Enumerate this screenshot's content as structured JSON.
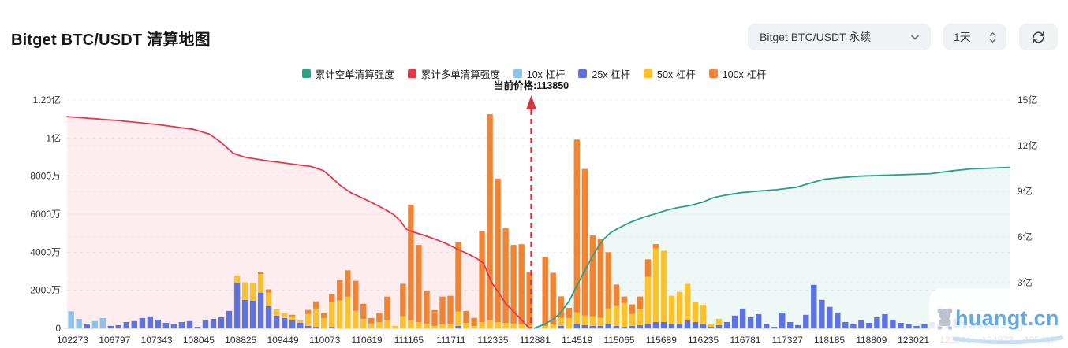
{
  "header": {
    "title": "Bitget BTC/USDT 清算地图"
  },
  "controls": {
    "symbol_select": {
      "value": "Bitget BTC/USDT 永续"
    },
    "period_select": {
      "value": "1天"
    }
  },
  "legend": {
    "items": [
      {
        "label": "累计空单清算强度",
        "color": "#2aa188"
      },
      {
        "label": "累计多单清算强度",
        "color": "#e5394a"
      },
      {
        "label": "10x 杠杆",
        "color": "#8ac4ea"
      },
      {
        "label": "25x 杠杆",
        "color": "#5e72e0"
      },
      {
        "label": "50x 杠杆",
        "color": "#fbc22d"
      },
      {
        "label": "100x 杠杆",
        "color": "#ee8434"
      }
    ]
  },
  "watermark": {
    "text": "huangt.cn"
  },
  "chart_data": {
    "type": "combo_bar_line",
    "title": "Bitget BTC/USDT 清算地图",
    "current_price": {
      "label": "当前价格:113850",
      "value": 113850,
      "x_frac": 0.4925
    },
    "left_axis": {
      "unit": "万",
      "max": 12000,
      "tick_labels": [
        "1.20亿",
        "1亿",
        "8000万",
        "6000万",
        "4000万",
        "2000万",
        "0"
      ],
      "tick_values": [
        12000,
        10000,
        8000,
        6000,
        4000,
        2000,
        0
      ]
    },
    "right_axis": {
      "unit": "亿",
      "max": 15,
      "tick_labels": [
        "15亿",
        "12亿",
        "9亿",
        "6亿",
        "3亿",
        "0"
      ],
      "tick_values": [
        15,
        12,
        9,
        6,
        3,
        0
      ]
    },
    "x_axis": {
      "tick_labels": [
        "102273",
        "106797",
        "107343",
        "108045",
        "108825",
        "109449",
        "110073",
        "110619",
        "111165",
        "111711",
        "112335",
        "112881",
        "114519",
        "115065",
        "115689",
        "116235",
        "116781",
        "117327",
        "118185",
        "118809",
        "123021",
        "123801",
        "124873",
        "125437"
      ]
    },
    "bar_series": {
      "names": [
        "10x 杠杆",
        "25x 杠杆",
        "50x 杠杆",
        "100x 杠杆"
      ],
      "colors": [
        "#8ac4ea",
        "#5e72e0",
        "#fbc22d",
        "#ee8434"
      ],
      "unit": "万",
      "stacks": [
        [
          900,
          0,
          0,
          0
        ],
        [
          500,
          0,
          0,
          0
        ],
        [
          0,
          250,
          0,
          0
        ],
        [
          380,
          0,
          0,
          0
        ],
        [
          540,
          0,
          0,
          0
        ],
        [
          0,
          130,
          0,
          0
        ],
        [
          0,
          170,
          0,
          0
        ],
        [
          0,
          330,
          0,
          0
        ],
        [
          0,
          380,
          0,
          0
        ],
        [
          0,
          540,
          0,
          0
        ],
        [
          0,
          630,
          0,
          0
        ],
        [
          0,
          460,
          0,
          0
        ],
        [
          0,
          290,
          0,
          0
        ],
        [
          0,
          210,
          0,
          0
        ],
        [
          0,
          330,
          0,
          0
        ],
        [
          0,
          380,
          0,
          0
        ],
        [
          0,
          80,
          0,
          0
        ],
        [
          0,
          420,
          0,
          0
        ],
        [
          0,
          500,
          0,
          0
        ],
        [
          0,
          580,
          0,
          0
        ],
        [
          0,
          920,
          0,
          0
        ],
        [
          0,
          2400,
          380,
          0
        ],
        [
          0,
          1500,
          920,
          0
        ],
        [
          0,
          1460,
          920,
          0
        ],
        [
          0,
          1880,
          960,
          130
        ],
        [
          0,
          1170,
          710,
          170
        ],
        [
          0,
          670,
          330,
          0
        ],
        [
          0,
          540,
          250,
          0
        ],
        [
          0,
          420,
          210,
          80
        ],
        [
          0,
          290,
          130,
          0
        ],
        [
          0,
          130,
          630,
          210
        ],
        [
          0,
          80,
          960,
          380
        ],
        [
          0,
          0,
          540,
          250
        ],
        [
          0,
          80,
          1290,
          420
        ],
        [
          0,
          0,
          1460,
          1080
        ],
        [
          0,
          0,
          1670,
          1380
        ],
        [
          0,
          0,
          920,
          1580
        ],
        [
          0,
          0,
          500,
          790
        ],
        [
          0,
          0,
          250,
          290
        ],
        [
          0,
          0,
          330,
          500
        ],
        [
          0,
          0,
          420,
          1250
        ],
        [
          0,
          0,
          130,
          0
        ],
        [
          0,
          0,
          630,
          1710
        ],
        [
          0,
          0,
          420,
          6080
        ],
        [
          0,
          0,
          330,
          4050
        ],
        [
          0,
          0,
          250,
          1730
        ],
        [
          0,
          0,
          130,
          830
        ],
        [
          0,
          0,
          210,
          1460
        ],
        [
          0,
          0,
          250,
          1460
        ],
        [
          0,
          130,
          750,
          3630
        ],
        [
          0,
          0,
          290,
          630
        ],
        [
          0,
          0,
          130,
          420
        ],
        [
          0,
          0,
          330,
          4790
        ],
        [
          0,
          0,
          420,
          10830
        ],
        [
          0,
          0,
          330,
          7540
        ],
        [
          0,
          0,
          290,
          4960
        ],
        [
          0,
          0,
          250,
          4130
        ],
        [
          0,
          0,
          210,
          4210
        ],
        [
          0,
          0,
          170,
          2790
        ],
        [
          0,
          0,
          0,
          0
        ],
        [
          0,
          0,
          130,
          3620
        ],
        [
          0,
          0,
          210,
          2710
        ],
        [
          0,
          130,
          420,
          1130
        ],
        [
          0,
          0,
          540,
          540
        ],
        [
          0,
          210,
          630,
          9080
        ],
        [
          0,
          170,
          500,
          7710
        ],
        [
          0,
          130,
          500,
          4250
        ],
        [
          0,
          130,
          420,
          4160
        ],
        [
          0,
          210,
          830,
          2960
        ],
        [
          0,
          130,
          1040,
          1130
        ],
        [
          0,
          80,
          1250,
          340
        ],
        [
          0,
          130,
          630,
          500
        ],
        [
          0,
          170,
          830,
          670
        ],
        [
          0,
          210,
          2500,
          920
        ],
        [
          0,
          330,
          3880,
          210
        ],
        [
          0,
          330,
          3750,
          0
        ],
        [
          0,
          210,
          1500,
          0
        ],
        [
          0,
          250,
          1670,
          0
        ],
        [
          0,
          420,
          1920,
          0
        ],
        [
          0,
          330,
          1040,
          0
        ],
        [
          0,
          250,
          1000,
          0
        ],
        [
          0,
          80,
          130,
          0
        ],
        [
          0,
          170,
          330,
          0
        ],
        [
          0,
          330,
          0,
          0
        ],
        [
          0,
          670,
          0,
          0
        ],
        [
          0,
          1040,
          0,
          0
        ],
        [
          0,
          580,
          0,
          0
        ],
        [
          0,
          750,
          0,
          0
        ],
        [
          0,
          250,
          0,
          0
        ],
        [
          0,
          80,
          0,
          0
        ],
        [
          0,
          830,
          0,
          0
        ],
        [
          0,
          330,
          0,
          0
        ],
        [
          0,
          170,
          0,
          0
        ],
        [
          0,
          710,
          0,
          0
        ],
        [
          0,
          2290,
          0,
          0
        ],
        [
          0,
          1500,
          0,
          0
        ],
        [
          0,
          1130,
          0,
          0
        ],
        [
          0,
          830,
          0,
          0
        ],
        [
          0,
          330,
          0,
          0
        ],
        [
          0,
          210,
          0,
          0
        ],
        [
          0,
          420,
          0,
          0
        ],
        [
          0,
          290,
          0,
          0
        ],
        [
          0,
          580,
          0,
          0
        ],
        [
          0,
          750,
          0,
          0
        ],
        [
          0,
          460,
          0,
          0
        ],
        [
          0,
          290,
          0,
          0
        ],
        [
          0,
          210,
          0,
          0
        ],
        [
          0,
          130,
          0,
          0
        ],
        [
          0,
          250,
          0,
          0
        ],
        [
          0,
          330,
          0,
          0
        ],
        [
          0,
          210,
          0,
          0
        ],
        [
          0,
          420,
          0,
          0
        ],
        [
          0,
          500,
          0,
          0
        ],
        [
          0,
          330,
          0,
          0
        ],
        [
          0,
          580,
          0,
          0
        ],
        [
          0,
          250,
          0,
          0
        ],
        [
          0,
          130,
          0,
          0
        ],
        [
          0,
          210,
          0,
          0
        ],
        [
          0,
          80,
          0,
          0
        ]
      ]
    },
    "line_series": [
      {
        "name": "累计多单清算强度",
        "color": "#e5394a",
        "fill": "rgba(231,57,74,0.09)",
        "unit": "亿",
        "points": [
          [
            0.0,
            13.91
          ],
          [
            0.054,
            13.65
          ],
          [
            0.096,
            13.39
          ],
          [
            0.134,
            13.07
          ],
          [
            0.151,
            12.76
          ],
          [
            0.163,
            12.24
          ],
          [
            0.176,
            11.51
          ],
          [
            0.188,
            11.25
          ],
          [
            0.209,
            11.04
          ],
          [
            0.234,
            10.83
          ],
          [
            0.259,
            10.63
          ],
          [
            0.272,
            10.36
          ],
          [
            0.28,
            9.95
          ],
          [
            0.289,
            9.43
          ],
          [
            0.301,
            8.91
          ],
          [
            0.314,
            8.54
          ],
          [
            0.326,
            8.18
          ],
          [
            0.339,
            7.76
          ],
          [
            0.347,
            7.45
          ],
          [
            0.354,
            7.03
          ],
          [
            0.36,
            6.51
          ],
          [
            0.366,
            6.35
          ],
          [
            0.377,
            6.15
          ],
          [
            0.389,
            5.89
          ],
          [
            0.402,
            5.57
          ],
          [
            0.414,
            5.21
          ],
          [
            0.427,
            4.84
          ],
          [
            0.435,
            4.58
          ],
          [
            0.442,
            4.27
          ],
          [
            0.446,
            3.65
          ],
          [
            0.451,
            2.97
          ],
          [
            0.458,
            2.34
          ],
          [
            0.465,
            1.67
          ],
          [
            0.473,
            1.15
          ],
          [
            0.481,
            0.63
          ],
          [
            0.488,
            0.16
          ],
          [
            0.491,
            0.02
          ]
        ]
      },
      {
        "name": "累计空单清算强度",
        "color": "#2aa188",
        "fill": "rgba(42,161,136,0.08)",
        "unit": "亿",
        "points": [
          [
            0.496,
            0.02
          ],
          [
            0.506,
            0.26
          ],
          [
            0.515,
            0.57
          ],
          [
            0.523,
            0.99
          ],
          [
            0.533,
            1.82
          ],
          [
            0.54,
            2.71
          ],
          [
            0.548,
            3.65
          ],
          [
            0.556,
            4.58
          ],
          [
            0.563,
            5.31
          ],
          [
            0.57,
            5.89
          ],
          [
            0.577,
            6.3
          ],
          [
            0.586,
            6.61
          ],
          [
            0.598,
            6.98
          ],
          [
            0.611,
            7.29
          ],
          [
            0.623,
            7.5
          ],
          [
            0.636,
            7.76
          ],
          [
            0.647,
            7.92
          ],
          [
            0.661,
            8.07
          ],
          [
            0.674,
            8.28
          ],
          [
            0.686,
            8.59
          ],
          [
            0.699,
            8.75
          ],
          [
            0.715,
            8.91
          ],
          [
            0.732,
            9.01
          ],
          [
            0.753,
            9.11
          ],
          [
            0.774,
            9.27
          ],
          [
            0.791,
            9.58
          ],
          [
            0.803,
            9.79
          ],
          [
            0.82,
            9.9
          ],
          [
            0.841,
            10.0
          ],
          [
            0.866,
            10.05
          ],
          [
            0.891,
            10.1
          ],
          [
            0.916,
            10.16
          ],
          [
            0.941,
            10.36
          ],
          [
            0.958,
            10.47
          ],
          [
            0.979,
            10.52
          ],
          [
            1.0,
            10.57
          ]
        ]
      }
    ]
  }
}
